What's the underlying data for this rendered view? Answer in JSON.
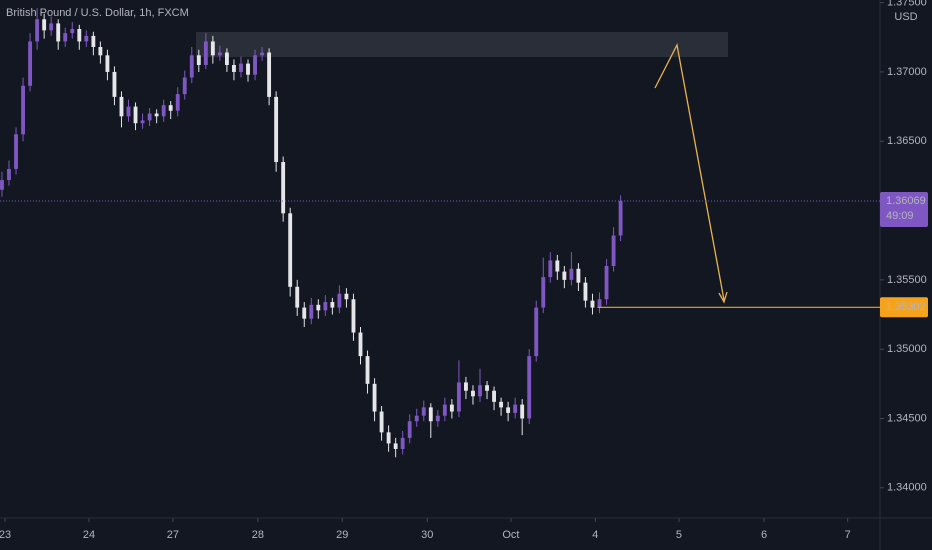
{
  "chart_data": {
    "type": "candlestick",
    "title": "British Pound / U.S. Dollar, 1h, FXCM",
    "currency": "USD",
    "up_color": "#7e57c2",
    "down_color": "#e6e6ea",
    "level_color": "#f7a21b",
    "ohlc": [
      [
        1.3615,
        1.3628,
        1.361,
        1.3622
      ],
      [
        1.3622,
        1.3636,
        1.3618,
        1.363
      ],
      [
        1.363,
        1.366,
        1.3626,
        1.3655
      ],
      [
        1.3655,
        1.3696,
        1.365,
        1.369
      ],
      [
        1.369,
        1.3728,
        1.3686,
        1.3722
      ],
      [
        1.3722,
        1.3746,
        1.3716,
        1.3738
      ],
      [
        1.3738,
        1.3742,
        1.3724,
        1.373
      ],
      [
        1.373,
        1.374,
        1.3726,
        1.3735
      ],
      [
        1.3735,
        1.3738,
        1.3716,
        1.3722
      ],
      [
        1.3722,
        1.3732,
        1.3718,
        1.3728
      ],
      [
        1.3728,
        1.3736,
        1.3724,
        1.3731
      ],
      [
        1.3731,
        1.3734,
        1.3716,
        1.3722
      ],
      [
        1.3722,
        1.373,
        1.3718,
        1.3726
      ],
      [
        1.3726,
        1.3729,
        1.3712,
        1.3718
      ],
      [
        1.3718,
        1.3722,
        1.3706,
        1.3712
      ],
      [
        1.3712,
        1.3716,
        1.3694,
        1.37
      ],
      [
        1.37,
        1.3704,
        1.3676,
        1.3682
      ],
      [
        1.3682,
        1.3686,
        1.366,
        1.3668
      ],
      [
        1.3668,
        1.368,
        1.3664,
        1.3675
      ],
      [
        1.3675,
        1.3678,
        1.3658,
        1.3663
      ],
      [
        1.3663,
        1.367,
        1.3659,
        1.3665
      ],
      [
        1.3665,
        1.3674,
        1.3661,
        1.367
      ],
      [
        1.367,
        1.3673,
        1.3663,
        1.3668
      ],
      [
        1.3668,
        1.368,
        1.3664,
        1.3676
      ],
      [
        1.3676,
        1.3679,
        1.3666,
        1.3672
      ],
      [
        1.3672,
        1.3689,
        1.3668,
        1.3684
      ],
      [
        1.3684,
        1.3701,
        1.368,
        1.3696
      ],
      [
        1.3696,
        1.3718,
        1.3692,
        1.3712
      ],
      [
        1.3712,
        1.3716,
        1.37,
        1.3705
      ],
      [
        1.3705,
        1.3728,
        1.3702,
        1.3722
      ],
      [
        1.3722,
        1.3726,
        1.3706,
        1.3712
      ],
      [
        1.3712,
        1.3719,
        1.3708,
        1.3714
      ],
      [
        1.3714,
        1.3717,
        1.37,
        1.3705
      ],
      [
        1.3705,
        1.3709,
        1.3694,
        1.37
      ],
      [
        1.37,
        1.3711,
        1.3696,
        1.3706
      ],
      [
        1.3706,
        1.3709,
        1.3693,
        1.3698
      ],
      [
        1.3698,
        1.3716,
        1.3694,
        1.3712
      ],
      [
        1.3712,
        1.3718,
        1.3708,
        1.3714
      ],
      [
        1.3714,
        1.3717,
        1.3676,
        1.3682
      ],
      [
        1.3682,
        1.3686,
        1.3628,
        1.3635
      ],
      [
        1.3635,
        1.3639,
        1.3592,
        1.3598
      ],
      [
        1.3598,
        1.3602,
        1.3538,
        1.3545
      ],
      [
        1.3545,
        1.355,
        1.3524,
        1.353
      ],
      [
        1.353,
        1.3534,
        1.3516,
        1.3522
      ],
      [
        1.3522,
        1.3537,
        1.3518,
        1.3532
      ],
      [
        1.3532,
        1.3536,
        1.3522,
        1.3528
      ],
      [
        1.3528,
        1.3539,
        1.3524,
        1.3534
      ],
      [
        1.3534,
        1.3537,
        1.3525,
        1.353
      ],
      [
        1.353,
        1.3546,
        1.3526,
        1.354
      ],
      [
        1.354,
        1.3544,
        1.353,
        1.3536
      ],
      [
        1.3536,
        1.354,
        1.3506,
        1.3512
      ],
      [
        1.3512,
        1.3516,
        1.3489,
        1.3495
      ],
      [
        1.3495,
        1.3499,
        1.3468,
        1.3475
      ],
      [
        1.3475,
        1.3479,
        1.3448,
        1.3455
      ],
      [
        1.3455,
        1.3459,
        1.3434,
        1.344
      ],
      [
        1.344,
        1.3445,
        1.3426,
        1.3432
      ],
      [
        1.3432,
        1.3436,
        1.3422,
        1.3428
      ],
      [
        1.3428,
        1.3441,
        1.3424,
        1.3436
      ],
      [
        1.3436,
        1.3453,
        1.3432,
        1.3448
      ],
      [
        1.3448,
        1.3457,
        1.3444,
        1.3452
      ],
      [
        1.3452,
        1.3463,
        1.3448,
        1.3458
      ],
      [
        1.3458,
        1.3461,
        1.3436,
        1.3448
      ],
      [
        1.3448,
        1.3456,
        1.3444,
        1.3452
      ],
      [
        1.3452,
        1.3465,
        1.3448,
        1.346
      ],
      [
        1.346,
        1.3464,
        1.345,
        1.3455
      ],
      [
        1.3455,
        1.3492,
        1.3451,
        1.3476
      ],
      [
        1.3476,
        1.348,
        1.3464,
        1.347
      ],
      [
        1.347,
        1.3474,
        1.346,
        1.3466
      ],
      [
        1.3466,
        1.3486,
        1.3462,
        1.3474
      ],
      [
        1.3474,
        1.3477,
        1.3464,
        1.347
      ],
      [
        1.347,
        1.3473,
        1.3456,
        1.3462
      ],
      [
        1.3462,
        1.3465,
        1.3452,
        1.3458
      ],
      [
        1.3458,
        1.3462,
        1.3448,
        1.3454
      ],
      [
        1.3454,
        1.3465,
        1.345,
        1.346
      ],
      [
        1.346,
        1.3464,
        1.3438,
        1.345
      ],
      [
        1.345,
        1.35,
        1.3446,
        1.3495
      ],
      [
        1.3495,
        1.3535,
        1.3491,
        1.353
      ],
      [
        1.353,
        1.3566,
        1.3526,
        1.3552
      ],
      [
        1.3552,
        1.357,
        1.3548,
        1.3564
      ],
      [
        1.3564,
        1.3568,
        1.355,
        1.3556
      ],
      [
        1.3556,
        1.356,
        1.3544,
        1.355
      ],
      [
        1.355,
        1.357,
        1.3546,
        1.3558
      ],
      [
        1.3558,
        1.3562,
        1.3542,
        1.3548
      ],
      [
        1.3548,
        1.3552,
        1.353,
        1.3535
      ],
      [
        1.3535,
        1.354,
        1.3525,
        1.353
      ],
      [
        1.353,
        1.3541,
        1.3526,
        1.3536
      ],
      [
        1.3536,
        1.3565,
        1.3532,
        1.356
      ],
      [
        1.356,
        1.3588,
        1.3556,
        1.3582
      ],
      [
        1.3582,
        1.3611,
        1.3578,
        1.3607
      ]
    ],
    "xlim": [
      -0.28,
      124.9
    ],
    "xticks": [
      {
        "value": 0.43,
        "label": "23"
      },
      {
        "value": 12.38,
        "label": "24"
      },
      {
        "value": 24.32,
        "label": "27"
      },
      {
        "value": 36.4,
        "label": "28"
      },
      {
        "value": 48.4,
        "label": "29"
      },
      {
        "value": 60.5,
        "label": "30"
      },
      {
        "value": 72.4,
        "label": "Oct"
      },
      {
        "value": 84.4,
        "label": "4"
      },
      {
        "value": 96.3,
        "label": "5"
      },
      {
        "value": 108.4,
        "label": "6"
      },
      {
        "value": 120.3,
        "label": "7"
      }
    ],
    "ylim": [
      1.33782,
      1.37519
    ],
    "yticks": [
      {
        "value": 1.34,
        "label": "1.34000"
      },
      {
        "value": 1.345,
        "label": "1.34500"
      },
      {
        "value": 1.35,
        "label": "1.35000"
      },
      {
        "value": 1.355,
        "label": "1.35500"
      },
      {
        "value": 1.36,
        "label": "1.36000"
      },
      {
        "value": 1.365,
        "label": "1.36500"
      },
      {
        "value": 1.37,
        "label": "1.37000"
      },
      {
        "value": 1.375,
        "label": "1.37500"
      }
    ],
    "last_price": 1.36069,
    "countdown": "49:09",
    "level": 1.35302
  }
}
